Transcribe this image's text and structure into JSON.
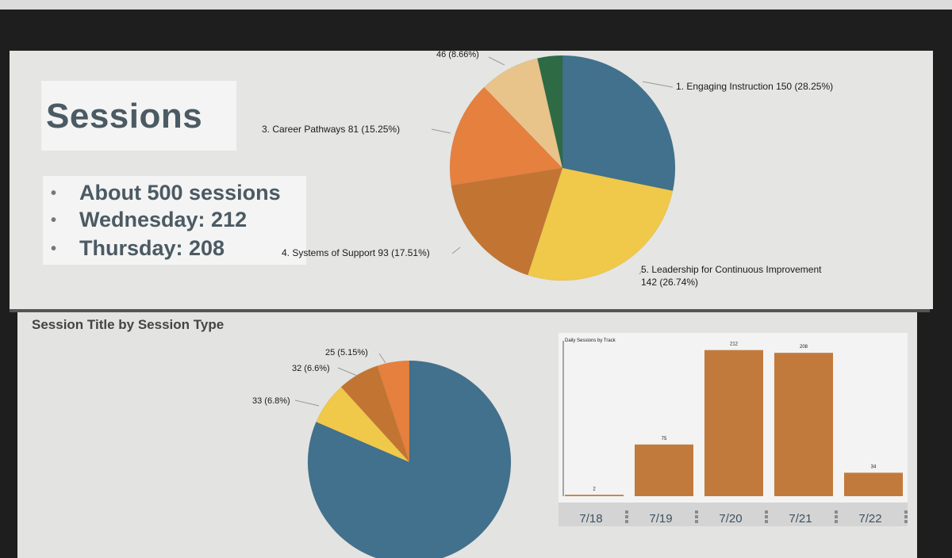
{
  "slide": {
    "title": "Sessions",
    "bullets": [
      "About 500 sessions",
      "Wednesday: 212",
      "Thursday: 208"
    ],
    "bottom_title": "Session Title by Session Type"
  },
  "chart_data": [
    {
      "type": "pie",
      "slices": [
        {
          "label": "1. Engaging Instruction 150 (28.25%)",
          "value": 150,
          "color": "#41718c"
        },
        {
          "label": "5. Leadership for Continuous Improvement 142 (26.74%)",
          "value": 142,
          "color": "#f0c84a"
        },
        {
          "label": "4. Systems of Support 93 (17.51%)",
          "value": 93,
          "color": "#c27532"
        },
        {
          "label": "3. Career Pathways 81 (15.25%)",
          "value": 81,
          "color": "#e5803e"
        },
        {
          "label": "46 (8.66%)",
          "value": 46,
          "color": "#e8c38a"
        },
        {
          "label": "",
          "value": 19,
          "color": "#2e6b45"
        }
      ]
    },
    {
      "type": "pie",
      "title": "Session Title by Session Type",
      "slices": [
        {
          "label": "",
          "value": 396,
          "color": "#41718c"
        },
        {
          "label": "33 (6.8%)",
          "value": 33,
          "color": "#f0c84a"
        },
        {
          "label": "32 (6.6%)",
          "value": 32,
          "color": "#c27532"
        },
        {
          "label": "25 (5.15%)",
          "value": 25,
          "color": "#e5803e"
        }
      ]
    },
    {
      "type": "bar",
      "title": "Daily Sessions by Track",
      "categories": [
        "7/18",
        "7/19",
        "7/20",
        "7/21",
        "7/22"
      ],
      "values": [
        2,
        75,
        212,
        208,
        34
      ],
      "ylim": [
        0,
        230
      ],
      "color": "#c27a3c"
    }
  ]
}
